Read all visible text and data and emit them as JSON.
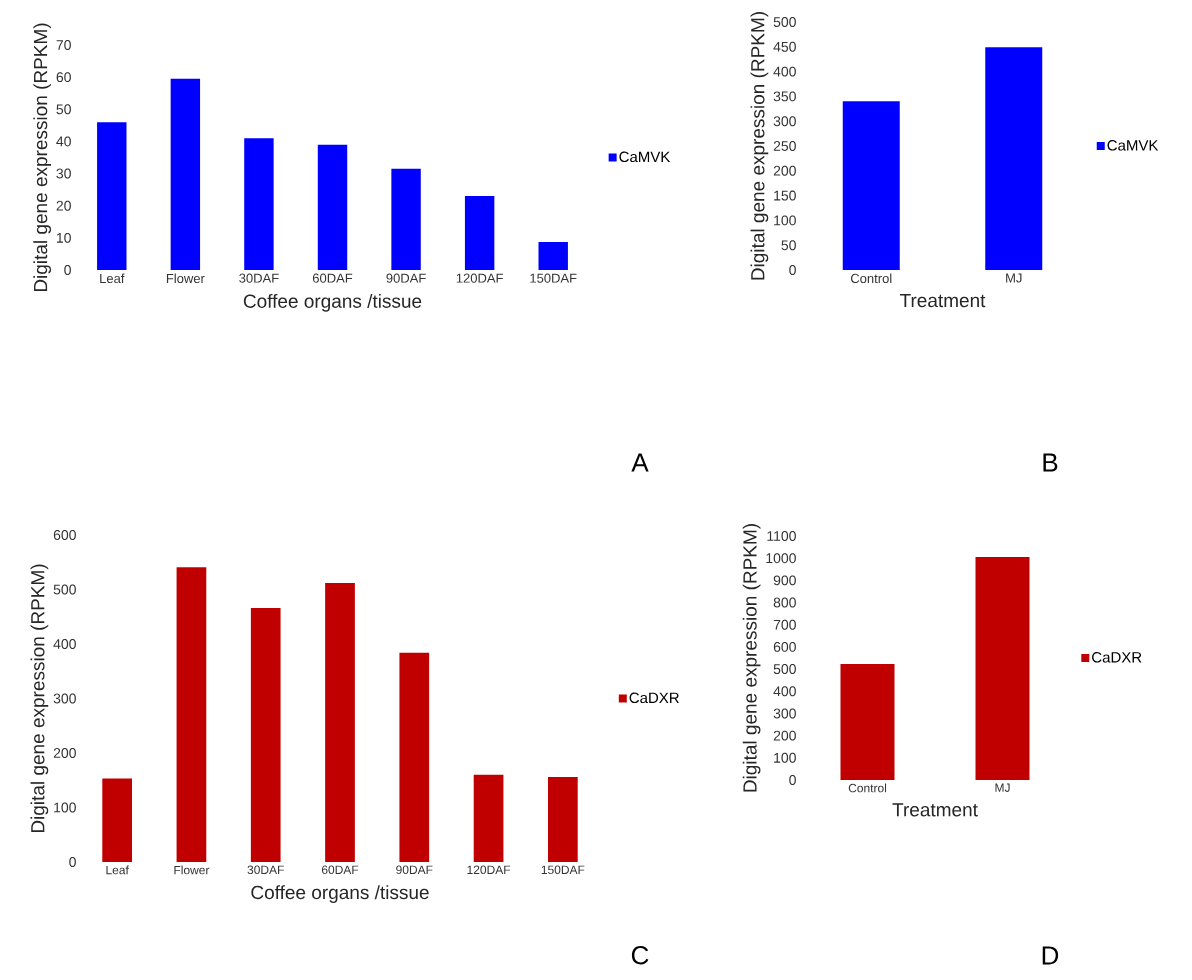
{
  "chart_data": [
    {
      "type": "bar",
      "categories": [
        "Leaf",
        "Flower",
        "30DAF",
        "60DAF",
        "90DAF",
        "120DAF",
        "150DAF"
      ],
      "xlabel": "Coffee organs /tissue",
      "ylabel": "Digital gene expression (RPKM)",
      "ylim": [
        0,
        70
      ],
      "yticks": [
        0,
        10,
        20,
        30,
        40,
        50,
        60,
        70
      ],
      "legend": "right",
      "annotations": [
        "A"
      ],
      "series": [
        {
          "name": "CaMVK",
          "color": "#0000ff",
          "values": [
            46,
            59.5,
            41,
            39,
            31.5,
            23,
            8.7
          ]
        }
      ]
    },
    {
      "type": "bar",
      "categories": [
        "Control",
        "MJ"
      ],
      "xlabel": "Treatment",
      "ylabel": "Digital gene expression (RPKM)",
      "ylim": [
        0,
        500
      ],
      "yticks": [
        0,
        50,
        100,
        150,
        200,
        250,
        300,
        350,
        400,
        450,
        500
      ],
      "legend": "right",
      "annotations": [
        "B"
      ],
      "series": [
        {
          "name": "CaMVK",
          "color": "#0000ff",
          "values": [
            340,
            449
          ]
        }
      ]
    },
    {
      "type": "bar",
      "categories": [
        "Leaf",
        "Flower",
        "30DAF",
        "60DAF",
        "90DAF",
        "120DAF",
        "150DAF"
      ],
      "xlabel": "Coffee organs /tissue",
      "ylabel": "Digital gene expression (RPKM)",
      "ylim": [
        0,
        600
      ],
      "yticks": [
        0,
        100,
        200,
        300,
        400,
        500,
        600
      ],
      "legend": "right",
      "annotations": [
        "C"
      ],
      "series": [
        {
          "name": "CaDXR",
          "color": "#c00000",
          "values": [
            153,
            541,
            466,
            512,
            384,
            160,
            156
          ]
        }
      ]
    },
    {
      "type": "bar",
      "categories": [
        "Control",
        "MJ"
      ],
      "xlabel": "Treatment",
      "ylabel": "Digital gene expression (RPKM)",
      "ylim": [
        0,
        1100
      ],
      "yticks": [
        0,
        100,
        200,
        300,
        400,
        500,
        600,
        700,
        800,
        900,
        1000,
        1100
      ],
      "legend": "right",
      "annotations": [
        "D"
      ],
      "series": [
        {
          "name": "CaDXR",
          "color": "#c00000",
          "values": [
            523,
            1005
          ]
        }
      ]
    }
  ]
}
